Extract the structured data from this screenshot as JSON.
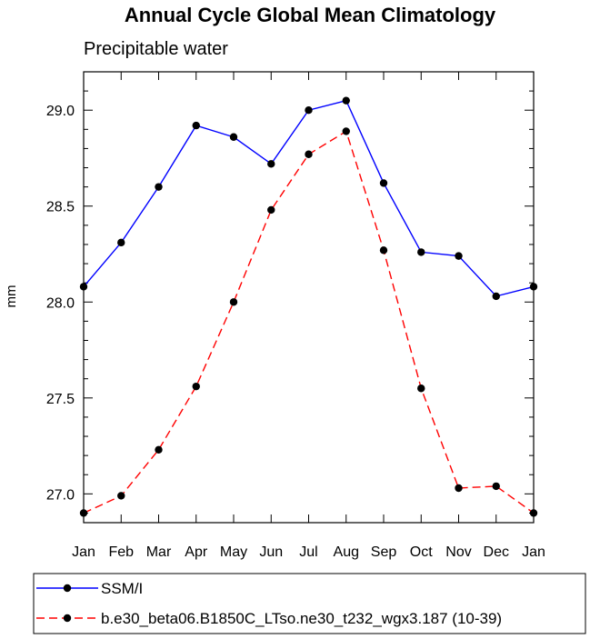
{
  "chart_data": {
    "type": "line",
    "title": "Annual Cycle Global Mean Climatology",
    "subtitle": "Precipitable water",
    "xlabel": "",
    "ylabel": "mm",
    "categories": [
      "Jan",
      "Feb",
      "Mar",
      "Apr",
      "May",
      "Jun",
      "Jul",
      "Aug",
      "Sep",
      "Oct",
      "Nov",
      "Dec",
      "Jan"
    ],
    "ylim": [
      26.85,
      29.2
    ],
    "yticks": [
      "27.0",
      "27.5",
      "28.0",
      "28.5",
      "29.0"
    ],
    "ytick_values": [
      27.0,
      27.5,
      28.0,
      28.5,
      29.0
    ],
    "grid": false,
    "legend_position": "bottom",
    "series": [
      {
        "name": "SSM/I",
        "color": "#0000ff",
        "style": "solid",
        "values": [
          28.08,
          28.31,
          28.6,
          28.92,
          28.86,
          28.72,
          29.0,
          29.05,
          28.62,
          28.26,
          28.24,
          28.03,
          28.08
        ]
      },
      {
        "name": "b.e30_beta06.B1850C_LTso.ne30_t232_wgx3.187 (10-39)",
        "color": "#ff0000",
        "style": "dashed",
        "values": [
          26.9,
          26.99,
          27.23,
          27.56,
          28.0,
          28.48,
          28.77,
          28.89,
          28.27,
          27.55,
          27.03,
          27.04,
          26.9
        ]
      }
    ]
  }
}
